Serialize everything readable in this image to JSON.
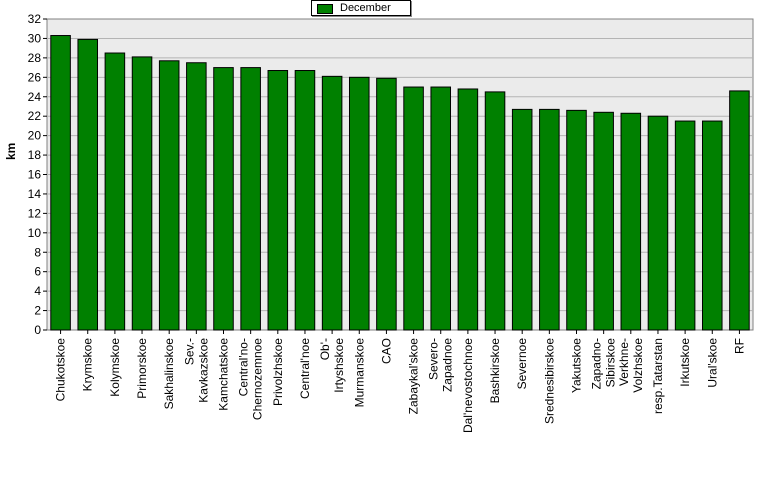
{
  "chart_data": {
    "type": "bar",
    "title": "",
    "xlabel": "",
    "ylabel": "km",
    "ylim": [
      0,
      32
    ],
    "yticks": [
      0,
      2,
      4,
      6,
      8,
      10,
      12,
      14,
      16,
      18,
      20,
      22,
      24,
      26,
      28,
      30,
      32
    ],
    "grid": true,
    "legend_position": "top-center",
    "categories": [
      "Chukotskoe",
      "Krymskoe",
      "Kolymskoe",
      "Primorskoe",
      "Sakhalinskoe",
      "Sev.-Kavkazskoe",
      "Kamchatskoe",
      "Central'no-Chernozemnoe",
      "Privolzhskoe",
      "Central'noe",
      "Ob'-Irtyshskoe",
      "Murmanskoe",
      "CAO",
      "Zabaykal'skoe",
      "Severo-Zapadnoe",
      "Dal'nevostochnoe",
      "Bashkirskoe",
      "Severnoe",
      "Srednesibirskoe",
      "Yakutskoe",
      "Zapadno-Sibirskoe",
      "Verkhne-Volzhskoe",
      "resp.Tatarstan",
      "Irkutskoe",
      "Ural'skoe",
      "RF"
    ],
    "tick_labels": [
      [
        "Chukotskoe"
      ],
      [
        "Krymskoe"
      ],
      [
        "Kolymskoe"
      ],
      [
        "Primorskoe"
      ],
      [
        "Sakhalinskoe"
      ],
      [
        "Sev.-",
        "Kavkazskoe"
      ],
      [
        "Kamchatskoe"
      ],
      [
        "Central'no-",
        "Chernozemnoe"
      ],
      [
        "Privolzhskoe"
      ],
      [
        "Central'noe"
      ],
      [
        "Ob'-",
        "Irtyshskoe"
      ],
      [
        "Murmanskoe"
      ],
      [
        "CAO"
      ],
      [
        "Zabaykal'skoe"
      ],
      [
        "Severo-",
        "Zapadnoe"
      ],
      [
        "Dal'nevostochnoe"
      ],
      [
        "Bashkirskoe"
      ],
      [
        "Severnoe"
      ],
      [
        "Srednesibirskoe"
      ],
      [
        "Yakutskoe"
      ],
      [
        "Zapadno-",
        "Sibirskoe"
      ],
      [
        "Verkhne-",
        "Volzhskoe"
      ],
      [
        "resp.Tatarstan"
      ],
      [
        "Irkutskoe"
      ],
      [
        "Ural'skoe"
      ],
      [
        "RF"
      ]
    ],
    "series": [
      {
        "name": "December",
        "color": "#008000",
        "values": [
          30.3,
          29.9,
          28.5,
          28.1,
          27.7,
          27.5,
          27.0,
          27.0,
          26.7,
          26.7,
          26.1,
          26.0,
          25.9,
          25.0,
          25.0,
          24.8,
          24.5,
          22.7,
          22.7,
          22.6,
          22.4,
          22.3,
          22.0,
          21.5,
          21.5,
          24.6
        ]
      }
    ]
  },
  "legend": {
    "label": "December"
  }
}
